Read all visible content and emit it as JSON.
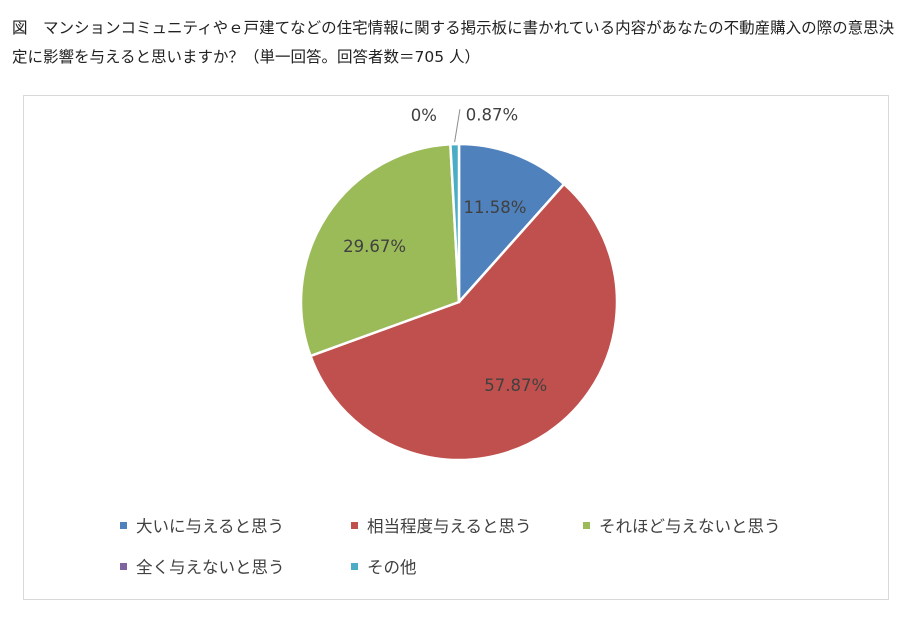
{
  "caption": "図　マンションコミュニティやｅ戸建てなどの住宅情報に関する掲示板に書かれている内容があなたの不動産購入の際の意思決定に影響を与えると思いますか？（単一回答。回答者数＝705 人）",
  "chart_data": {
    "type": "pie",
    "title": "",
    "start_angle_deg": 0,
    "direction": "clockwise",
    "legend_position": "bottom",
    "slices": [
      {
        "label": "大いに与えると思う",
        "value": 11.58,
        "display": "11.58%",
        "color": "#4f81bd"
      },
      {
        "label": "相当程度与えると思う",
        "value": 57.87,
        "display": "57.87%",
        "color": "#c0504d"
      },
      {
        "label": "それほど与えないと思う",
        "value": 29.67,
        "display": "29.67%",
        "color": "#9bbb59"
      },
      {
        "label": "全く与えないと思う",
        "value": 0,
        "display": "0%",
        "color": "#8064a2"
      },
      {
        "label": "その他",
        "value": 0.87,
        "display": "0.87%",
        "color": "#4bacc6"
      }
    ]
  }
}
